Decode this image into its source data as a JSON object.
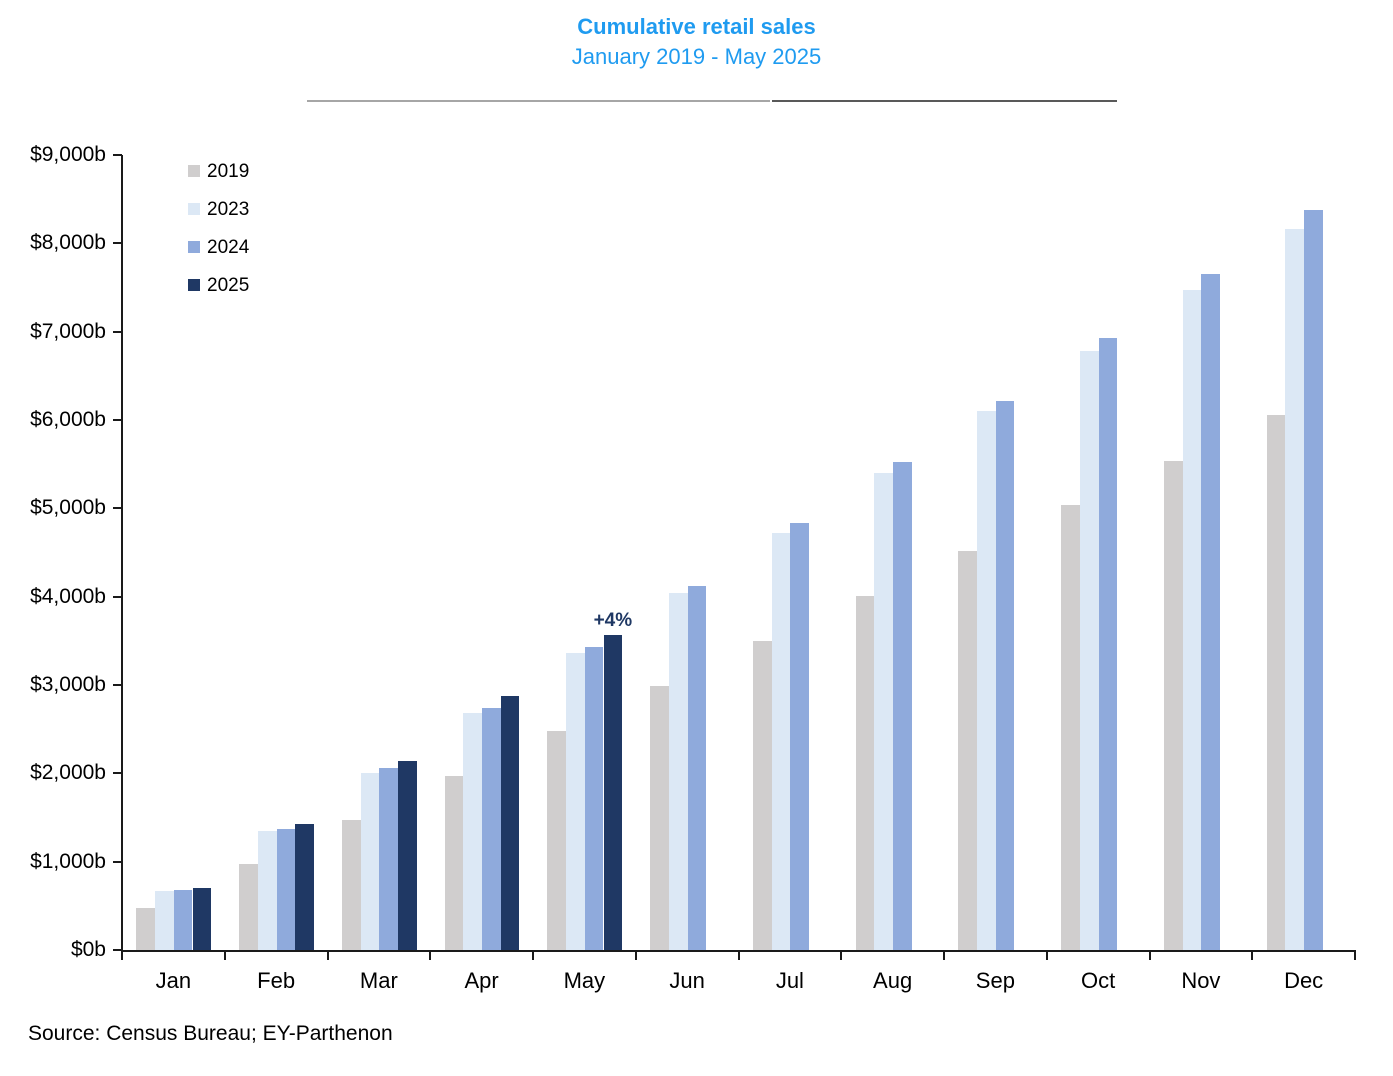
{
  "title": "Cumulative retail sales",
  "subtitle": "January 2019 - May 2025",
  "source": "Source: Census Bureau; EY-Parthenon",
  "colors": {
    "title_blue": "#1f9bf0",
    "axis": "#1a1a1a",
    "annotation_navy": "#1f3864",
    "series_2019": "#d0cece",
    "series_2023": "#dce8f5",
    "series_2024": "#8faadc",
    "series_2025": "#1f3864"
  },
  "annotation": {
    "text": "+4%",
    "category": "May",
    "series": "2025"
  },
  "chart_data": {
    "type": "bar",
    "title": "Cumulative retail sales",
    "subtitle": "January 2019 - May 2025",
    "xlabel": "",
    "ylabel": "",
    "ylim": [
      0,
      9000
    ],
    "grid": false,
    "legend_position": "top-left-inside",
    "y_tick_labels": [
      "$0b",
      "$1,000b",
      "$2,000b",
      "$3,000b",
      "$4,000b",
      "$5,000b",
      "$6,000b",
      "$7,000b",
      "$8,000b",
      "$9,000b"
    ],
    "y_tick_values": [
      0,
      1000,
      2000,
      3000,
      4000,
      5000,
      6000,
      7000,
      8000,
      9000
    ],
    "categories": [
      "Jan",
      "Feb",
      "Mar",
      "Apr",
      "May",
      "Jun",
      "Jul",
      "Aug",
      "Sep",
      "Oct",
      "Nov",
      "Dec"
    ],
    "series": [
      {
        "name": "2019",
        "color": "#d0cece",
        "values": [
          480,
          975,
          1470,
          1970,
          2480,
          2990,
          3500,
          4010,
          4520,
          5035,
          5540,
          6060
        ]
      },
      {
        "name": "2023",
        "color": "#dce8f5",
        "values": [
          670,
          1350,
          2005,
          2685,
          3360,
          4040,
          4720,
          5400,
          6100,
          6780,
          7470,
          8160
        ]
      },
      {
        "name": "2024",
        "color": "#8faadc",
        "values": [
          675,
          1370,
          2055,
          2735,
          3425,
          4120,
          4830,
          5520,
          6220,
          6930,
          7655,
          8375
        ]
      },
      {
        "name": "2025",
        "color": "#1f3864",
        "values": [
          705,
          1425,
          2140,
          2870,
          3565,
          null,
          null,
          null,
          null,
          null,
          null,
          null
        ]
      }
    ]
  }
}
